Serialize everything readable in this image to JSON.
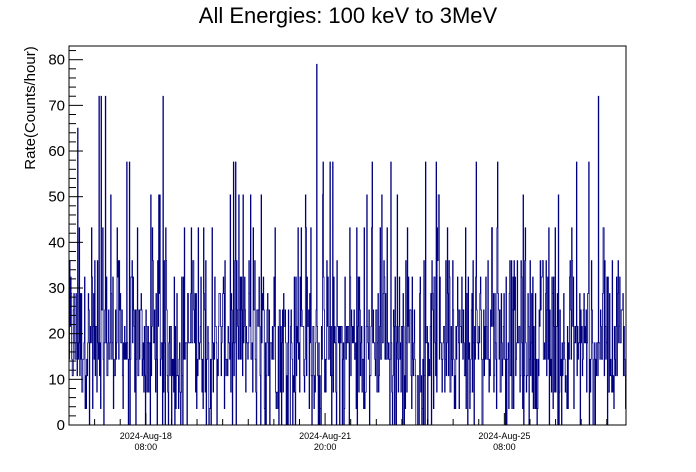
{
  "chart_data": {
    "type": "bar",
    "title": "All Energies:  100 keV to 3MeV",
    "xlabel": "",
    "ylabel": "Rate(Counts/hour)",
    "ylim": [
      0,
      83
    ],
    "y_ticks": [
      0,
      10,
      20,
      30,
      40,
      50,
      60,
      70,
      80
    ],
    "x_ticks": [
      {
        "date": "2024-Aug-18",
        "time": "08:00",
        "hours": 36
      },
      {
        "date": "2024-Aug-21",
        "time": "20:00",
        "hours": 120
      },
      {
        "date": "2024-Aug-25",
        "time": "08:00",
        "hours": 204
      }
    ],
    "x_start": "2024-Aug-16 20:00",
    "x_range_hours": [
      0,
      261
    ],
    "bin_width_hours": 0.25,
    "series": [
      {
        "color": "#000080",
        "rate_levels": [
          0,
          3.6,
          7.2,
          10.8,
          14.4,
          18,
          21.6,
          25.2,
          28.8,
          32.4,
          36,
          43.2,
          50.4,
          57.6,
          64.8,
          72,
          79.2
        ],
        "notable_peaks": [
          {
            "hours": 4,
            "value": 65
          },
          {
            "hours": 14,
            "value": 72
          },
          {
            "hours": 15,
            "value": 72
          },
          {
            "hours": 17,
            "value": 72
          },
          {
            "hours": 44,
            "value": 72
          },
          {
            "hours": 116,
            "value": 79
          },
          {
            "hours": 248,
            "value": 72
          }
        ]
      }
    ]
  }
}
